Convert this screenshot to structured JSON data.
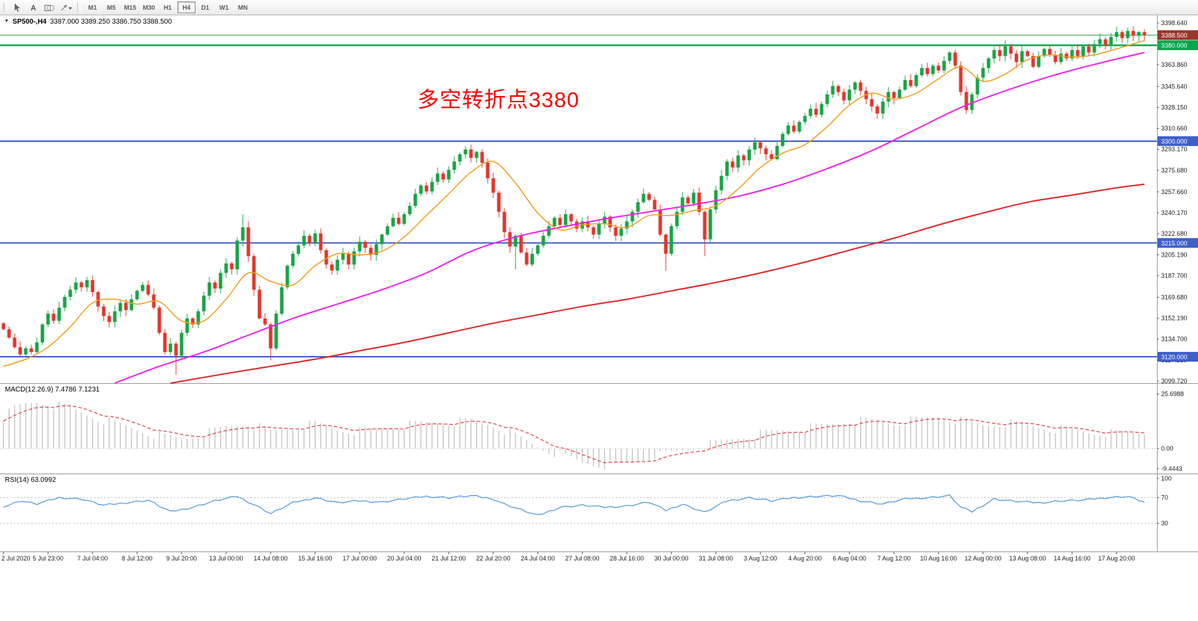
{
  "toolbar": {
    "tools": [
      "pointer-icon",
      "text-tool-icon",
      "geometry-icon",
      "arrow-style-icon"
    ],
    "timeframes": [
      "M1",
      "M5",
      "M15",
      "M30",
      "H1",
      "H4",
      "D1",
      "W1",
      "MN"
    ],
    "selected_timeframe": "H4"
  },
  "header": {
    "collapse_icon": "▼",
    "symbol": "SP500-,H4",
    "ohlc": "3387.000 3389.250 3386.750 3388.500"
  },
  "annotation": {
    "text": "多空转折点3380",
    "color": "#FF0000"
  },
  "price_axis": {
    "ticks": [
      "3398.640",
      "3363.860",
      "3345.640",
      "3328.150",
      "3310.660",
      "3293.170",
      "3275.680",
      "3257.660",
      "3240.170",
      "3222.680",
      "3205.190",
      "3187.700",
      "3169.680",
      "3152.190",
      "3134.700",
      "3117.210",
      "3099.720"
    ],
    "badges": [
      {
        "label": "3388.500",
        "price": 3388.5,
        "bg": "#9C352B",
        "role": "current-price"
      },
      {
        "label": "3380.000",
        "price": 3380.0,
        "bg": "#00A84F",
        "role": "level"
      },
      {
        "label": "3300.000",
        "price": 3300.0,
        "bg": "#3F5FC9",
        "role": "level"
      },
      {
        "label": "3215.000",
        "price": 3215.0,
        "bg": "#3F5FC9",
        "role": "level"
      },
      {
        "label": "3120.000",
        "price": 3120.0,
        "bg": "#3F5FC9",
        "role": "level"
      }
    ]
  },
  "time_axis": [
    "2 Jul 2020",
    "5 Jul 23:00",
    "7 Jul 04:00",
    "8 Jul 12:00",
    "9 Jul 20:00",
    "13 Jul 00:00",
    "14 Jul 08:00",
    "15 Jul 16:00",
    "17 Jul 00:00",
    "20 Jul 04:00",
    "21 Jul 12:00",
    "22 Jul 20:00",
    "24 Jul 04:00",
    "27 Jul 08:00",
    "28 Jul 16:00",
    "30 Jul 00:00",
    "31 Jul 08:00",
    "3 Aug 12:00",
    "4 Aug 20:00",
    "6 Aug 04:00",
    "7 Aug 12:00",
    "10 Aug 16:00",
    "12 Aug 00:00",
    "13 Aug 08:00",
    "14 Aug 16:00",
    "17 Aug 20:00"
  ],
  "macd": {
    "title": "MACD(12.26.9) 7.4786 7.1231",
    "axis": [
      "25.6988",
      "0.00",
      "-9.4443"
    ]
  },
  "rsi": {
    "title": "RSI(14) 63.0992",
    "axis": [
      "100",
      "70",
      "30"
    ]
  },
  "style": {
    "up": "#18A444",
    "down": "#E5352B",
    "ma_fast": "#F49B1B",
    "ma_mid": "#EE22EE",
    "ma_slow": "#E02424",
    "level_blue": "#3F5FC9",
    "level_green": "#00A84F",
    "current_line": "#2FA84F",
    "macd_bar": "#C9C9C9",
    "macd_signal": "#E03030",
    "rsi_line": "#4D96D9",
    "axis_text": "#1a1a1a"
  },
  "chart_data": {
    "type": "candlestick",
    "symbol": "SP500-",
    "timeframe": "H4",
    "last_ohlc": {
      "open": 3387.0,
      "high": 3389.25,
      "low": 3386.75,
      "close": 3388.5
    },
    "visible_price_range": [
      3099.72,
      3398.64
    ],
    "horizontal_levels": [
      3380.0,
      3300.0,
      3215.0,
      3120.0
    ],
    "current_price": 3388.5,
    "open_first": 3148,
    "closes": [
      3143,
      3136,
      3128,
      3122,
      3127,
      3124,
      3132,
      3147,
      3156,
      3150,
      3161,
      3170,
      3176,
      3182,
      3178,
      3184,
      3174,
      3162,
      3154,
      3149,
      3158,
      3165,
      3159,
      3168,
      3175,
      3180,
      3172,
      3161,
      3140,
      3124,
      3131,
      3121,
      3140,
      3152,
      3147,
      3158,
      3171,
      3182,
      3177,
      3190,
      3198,
      3193,
      3217,
      3228,
      3204,
      3176,
      3152,
      3147,
      3127,
      3156,
      3178,
      3196,
      3206,
      3213,
      3221,
      3215,
      3223,
      3209,
      3197,
      3192,
      3201,
      3206,
      3197,
      3208,
      3216,
      3211,
      3205,
      3214,
      3222,
      3229,
      3236,
      3231,
      3239,
      3246,
      3256,
      3263,
      3258,
      3266,
      3273,
      3268,
      3276,
      3283,
      3289,
      3293,
      3286,
      3291,
      3282,
      3269,
      3257,
      3241,
      3224,
      3212,
      3221,
      3207,
      3197,
      3206,
      3213,
      3221,
      3229,
      3236,
      3230,
      3239,
      3233,
      3227,
      3233,
      3228,
      3222,
      3231,
      3237,
      3228,
      3221,
      3227,
      3233,
      3241,
      3249,
      3256,
      3251,
      3243,
      3222,
      3206,
      3229,
      3241,
      3253,
      3248,
      3257,
      3241,
      3218,
      3243,
      3259,
      3271,
      3283,
      3278,
      3288,
      3284,
      3293,
      3299,
      3294,
      3289,
      3285,
      3296,
      3306,
      3313,
      3308,
      3316,
      3321,
      3327,
      3322,
      3331,
      3339,
      3346,
      3341,
      3334,
      3343,
      3349,
      3342,
      3335,
      3329,
      3323,
      3333,
      3341,
      3336,
      3343,
      3351,
      3346,
      3355,
      3361,
      3356,
      3363,
      3359,
      3367,
      3374,
      3363,
      3341,
      3326,
      3339,
      3353,
      3361,
      3369,
      3376,
      3371,
      3379,
      3373,
      3366,
      3375,
      3371,
      3362,
      3371,
      3377,
      3372,
      3366,
      3373,
      3369,
      3376,
      3371,
      3379,
      3374,
      3381,
      3385,
      3380,
      3387,
      3391,
      3386,
      3392,
      3388,
      3391,
      3388.5
    ],
    "wick_overrides": {
      "31": {
        "low": 3105
      },
      "43": {
        "high": 3239
      },
      "48": {
        "low": 3117
      },
      "92": {
        "low": 3193
      },
      "119": {
        "low": 3192
      },
      "126": {
        "low": 3204
      }
    },
    "ma_orange_points": [
      [
        0,
        3112
      ],
      [
        4,
        3118
      ],
      [
        8,
        3128
      ],
      [
        12,
        3145
      ],
      [
        16,
        3165
      ],
      [
        20,
        3168
      ],
      [
        24,
        3164
      ],
      [
        28,
        3166
      ],
      [
        32,
        3150
      ],
      [
        36,
        3150
      ],
      [
        40,
        3168
      ],
      [
        44,
        3190
      ],
      [
        48,
        3183
      ],
      [
        52,
        3180
      ],
      [
        56,
        3196
      ],
      [
        60,
        3206
      ],
      [
        64,
        3205
      ],
      [
        68,
        3208
      ],
      [
        72,
        3220
      ],
      [
        76,
        3238
      ],
      [
        80,
        3256
      ],
      [
        84,
        3274
      ],
      [
        88,
        3283
      ],
      [
        92,
        3265
      ],
      [
        96,
        3240
      ],
      [
        100,
        3226
      ],
      [
        104,
        3230
      ],
      [
        108,
        3231
      ],
      [
        112,
        3228
      ],
      [
        116,
        3238
      ],
      [
        120,
        3238
      ],
      [
        124,
        3242
      ],
      [
        128,
        3246
      ],
      [
        132,
        3260
      ],
      [
        136,
        3278
      ],
      [
        140,
        3290
      ],
      [
        144,
        3297
      ],
      [
        148,
        3312
      ],
      [
        152,
        3330
      ],
      [
        156,
        3340
      ],
      [
        160,
        3335
      ],
      [
        164,
        3340
      ],
      [
        168,
        3352
      ],
      [
        172,
        3362
      ],
      [
        176,
        3350
      ],
      [
        180,
        3356
      ],
      [
        184,
        3368
      ],
      [
        188,
        3372
      ],
      [
        192,
        3370
      ],
      [
        196,
        3372
      ],
      [
        200,
        3377
      ],
      [
        205,
        3384
      ]
    ],
    "ma_magenta_points": [
      [
        20,
        3098
      ],
      [
        28,
        3112
      ],
      [
        36,
        3124
      ],
      [
        44,
        3138
      ],
      [
        52,
        3152
      ],
      [
        60,
        3164
      ],
      [
        68,
        3176
      ],
      [
        76,
        3190
      ],
      [
        84,
        3208
      ],
      [
        92,
        3220
      ],
      [
        100,
        3228
      ],
      [
        108,
        3235
      ],
      [
        116,
        3241
      ],
      [
        124,
        3247
      ],
      [
        132,
        3254
      ],
      [
        140,
        3264
      ],
      [
        148,
        3277
      ],
      [
        156,
        3292
      ],
      [
        164,
        3310
      ],
      [
        172,
        3328
      ],
      [
        180,
        3342
      ],
      [
        188,
        3354
      ],
      [
        196,
        3364
      ],
      [
        205,
        3374
      ]
    ],
    "ma_red_points": [
      [
        30,
        3098
      ],
      [
        40,
        3106
      ],
      [
        48,
        3112
      ],
      [
        56,
        3118
      ],
      [
        64,
        3125
      ],
      [
        72,
        3132
      ],
      [
        80,
        3140
      ],
      [
        88,
        3148
      ],
      [
        96,
        3155
      ],
      [
        104,
        3162
      ],
      [
        112,
        3168
      ],
      [
        120,
        3175
      ],
      [
        128,
        3182
      ],
      [
        136,
        3190
      ],
      [
        144,
        3199
      ],
      [
        152,
        3209
      ],
      [
        160,
        3219
      ],
      [
        168,
        3230
      ],
      [
        176,
        3240
      ],
      [
        184,
        3249
      ],
      [
        192,
        3255
      ],
      [
        200,
        3261
      ],
      [
        205,
        3264
      ]
    ],
    "macd_points": [
      [
        0,
        15
      ],
      [
        2,
        19
      ],
      [
        4,
        21
      ],
      [
        6,
        22
      ],
      [
        8,
        21
      ],
      [
        10,
        20
      ],
      [
        12,
        19
      ],
      [
        14,
        17
      ],
      [
        16,
        15
      ],
      [
        20,
        12
      ],
      [
        24,
        9
      ],
      [
        28,
        6
      ],
      [
        32,
        4.5
      ],
      [
        36,
        7
      ],
      [
        40,
        10
      ],
      [
        44,
        12
      ],
      [
        48,
        8
      ],
      [
        52,
        10
      ],
      [
        56,
        11.5
      ],
      [
        60,
        9
      ],
      [
        64,
        8
      ],
      [
        68,
        9.5
      ],
      [
        72,
        11
      ],
      [
        76,
        12
      ],
      [
        80,
        12.5
      ],
      [
        84,
        13
      ],
      [
        88,
        11
      ],
      [
        92,
        6
      ],
      [
        96,
        1
      ],
      [
        100,
        -3
      ],
      [
        104,
        -6.5
      ],
      [
        108,
        -8
      ],
      [
        112,
        -7
      ],
      [
        116,
        -4
      ],
      [
        120,
        -2
      ],
      [
        124,
        0.5
      ],
      [
        128,
        2.5
      ],
      [
        132,
        5
      ],
      [
        136,
        7
      ],
      [
        140,
        8.5
      ],
      [
        144,
        9.5
      ],
      [
        148,
        11
      ],
      [
        152,
        13
      ],
      [
        156,
        13
      ],
      [
        160,
        12
      ],
      [
        164,
        13.5
      ],
      [
        168,
        15
      ],
      [
        172,
        13
      ],
      [
        176,
        11
      ],
      [
        180,
        12
      ],
      [
        184,
        11
      ],
      [
        188,
        9.5
      ],
      [
        192,
        8.5
      ],
      [
        196,
        7.5
      ],
      [
        200,
        7
      ],
      [
        203,
        7.5
      ],
      [
        205,
        7.4786
      ]
    ],
    "macd_range": [
      -9.4443,
      25.6988
    ],
    "rsi_points": [
      [
        0,
        55
      ],
      [
        3,
        65
      ],
      [
        6,
        60
      ],
      [
        10,
        70
      ],
      [
        14,
        68
      ],
      [
        18,
        58
      ],
      [
        22,
        62
      ],
      [
        26,
        66
      ],
      [
        30,
        48
      ],
      [
        34,
        55
      ],
      [
        38,
        65
      ],
      [
        42,
        72
      ],
      [
        46,
        55
      ],
      [
        48,
        45
      ],
      [
        52,
        62
      ],
      [
        56,
        70
      ],
      [
        60,
        62
      ],
      [
        64,
        65
      ],
      [
        68,
        63
      ],
      [
        72,
        68
      ],
      [
        76,
        72
      ],
      [
        80,
        70
      ],
      [
        84,
        73
      ],
      [
        88,
        68
      ],
      [
        90,
        60
      ],
      [
        94,
        48
      ],
      [
        96,
        42
      ],
      [
        100,
        55
      ],
      [
        104,
        58
      ],
      [
        108,
        55
      ],
      [
        112,
        57
      ],
      [
        116,
        63
      ],
      [
        119,
        50
      ],
      [
        122,
        60
      ],
      [
        126,
        47
      ],
      [
        130,
        65
      ],
      [
        134,
        70
      ],
      [
        138,
        65
      ],
      [
        142,
        70
      ],
      [
        146,
        72
      ],
      [
        150,
        73
      ],
      [
        154,
        65
      ],
      [
        158,
        60
      ],
      [
        162,
        68
      ],
      [
        166,
        70
      ],
      [
        170,
        73
      ],
      [
        172,
        55
      ],
      [
        174,
        48
      ],
      [
        178,
        68
      ],
      [
        182,
        64
      ],
      [
        186,
        62
      ],
      [
        190,
        65
      ],
      [
        194,
        66
      ],
      [
        198,
        70
      ],
      [
        202,
        72
      ],
      [
        205,
        63.1
      ]
    ],
    "rsi_levels": [
      70,
      30
    ]
  }
}
